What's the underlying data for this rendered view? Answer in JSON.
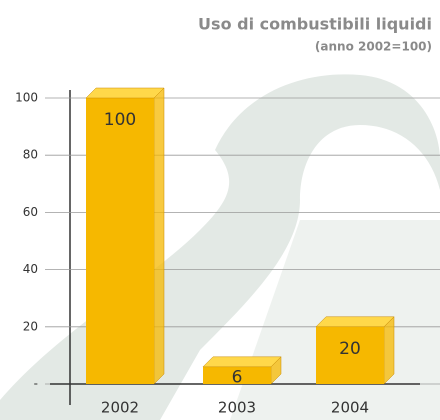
{
  "chart_data": {
    "type": "bar",
    "title": "Uso di combustibili liquidi",
    "subtitle": "(anno 2002=100)",
    "categories": [
      "2002",
      "2003",
      "2004"
    ],
    "values": [
      100,
      6,
      20
    ],
    "color": "#f6b800",
    "ylim": [
      0,
      100
    ],
    "yticks": [
      {
        "value": 0,
        "label": "-"
      },
      20,
      40,
      60,
      80,
      100
    ],
    "grid": true
  }
}
